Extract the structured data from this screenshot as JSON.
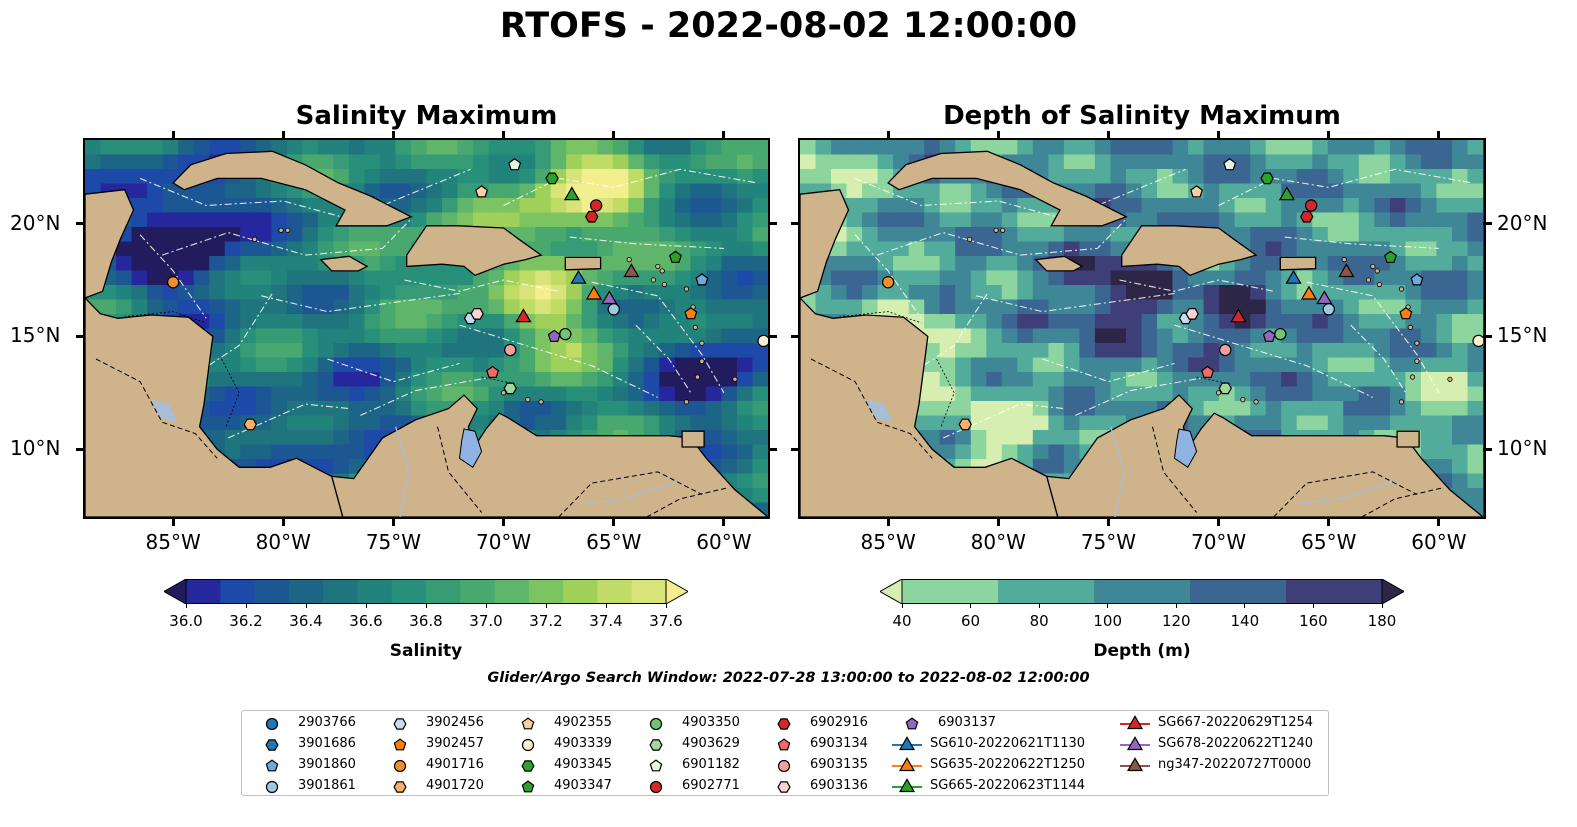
{
  "title": "RTOFS - 2022-08-02 12:00:00",
  "maps": [
    {
      "title": "Salinity Maximum"
    },
    {
      "title": "Depth of Salinity Maximum"
    }
  ],
  "lon_ticks": [
    "85°W",
    "80°W",
    "75°W",
    "70°W",
    "65°W",
    "60°W"
  ],
  "lat_ticks": [
    "20°N",
    "15°N",
    "10°N"
  ],
  "colorbars": [
    {
      "label": "Salinity",
      "ticks": [
        "36.0",
        "36.2",
        "36.4",
        "36.6",
        "36.8",
        "37.0",
        "37.2",
        "37.4",
        "37.6"
      ],
      "colors": [
        "#221c5e",
        "#26279c",
        "#1d49a8",
        "#1c5793",
        "#1d6586",
        "#1f747d",
        "#21837b",
        "#288f7a",
        "#379c75",
        "#48a86e",
        "#5fb66a",
        "#7cc361",
        "#9fd15a",
        "#c0dc66",
        "#d8e47a",
        "#f3ef8f"
      ]
    },
    {
      "label": "Depth (m)",
      "ticks": [
        "40",
        "60",
        "80",
        "100",
        "120",
        "140",
        "160",
        "180"
      ],
      "colors": [
        "#d6eeb0",
        "#8cd59f",
        "#53ab9b",
        "#3f8796",
        "#3a6691",
        "#3e3e79",
        "#2d2646"
      ]
    }
  ],
  "search_window": "Glider/Argo Search Window: 2022-07-28 13:00:00 to 2022-08-02 12:00:00",
  "map_data": {
    "lon_range": [
      -89,
      -58
    ],
    "lat_range": [
      7,
      23.7
    ],
    "land_color": "#cfb38b",
    "platforms": [
      {
        "id": "2903766",
        "marker": "circle",
        "color": "#1f77b4",
        "lon": null,
        "lat": null
      },
      {
        "id": "3901686",
        "marker": "hexagon",
        "color": "#1f77b4",
        "lon": null,
        "lat": null
      },
      {
        "id": "3901860",
        "marker": "pentagon",
        "color": "#6fa8dc",
        "lon": -61.0,
        "lat": 17.5
      },
      {
        "id": "3901861",
        "marker": "circle",
        "color": "#9ecae1",
        "lon": -65.0,
        "lat": 16.2
      },
      {
        "id": "3902456",
        "marker": "hexagon",
        "color": "#c6dbef",
        "lon": -71.5,
        "lat": 15.8
      },
      {
        "id": "3902457",
        "marker": "pentagon",
        "color": "#ff7f0e",
        "lon": -61.5,
        "lat": 16.0
      },
      {
        "id": "4901716",
        "marker": "circle",
        "color": "#f28e2b",
        "lon": -85.0,
        "lat": 17.4
      },
      {
        "id": "4901720",
        "marker": "hexagon",
        "color": "#fdae6b",
        "lon": -81.5,
        "lat": 11.1
      },
      {
        "id": "4902355",
        "marker": "pentagon",
        "color": "#fdd0a2",
        "lon": -71.0,
        "lat": 21.4
      },
      {
        "id": "4903339",
        "marker": "circle",
        "color": "#fff0d0",
        "lon": -58.2,
        "lat": 14.8
      },
      {
        "id": "4903345",
        "marker": "hexagon",
        "color": "#2ca02c",
        "lon": -67.8,
        "lat": 22.0
      },
      {
        "id": "4903347",
        "marker": "pentagon",
        "color": "#2ca02c",
        "lon": -62.2,
        "lat": 18.5
      },
      {
        "id": "4903350",
        "marker": "circle",
        "color": "#74c476",
        "lon": -67.2,
        "lat": 15.1
      },
      {
        "id": "4903629",
        "marker": "hexagon",
        "color": "#a1d99b",
        "lon": -69.7,
        "lat": 12.7
      },
      {
        "id": "6901182",
        "marker": "pentagon",
        "color": "#e5f5e0",
        "lon": -69.5,
        "lat": 22.6
      },
      {
        "id": "6902771",
        "marker": "circle",
        "color": "#d62728",
        "lon": -65.8,
        "lat": 20.8
      },
      {
        "id": "6902916",
        "marker": "hexagon",
        "color": "#d62728",
        "lon": -66.0,
        "lat": 20.3
      },
      {
        "id": "6903134",
        "marker": "pentagon",
        "color": "#f16a6a",
        "lon": -70.5,
        "lat": 13.4
      },
      {
        "id": "6903135",
        "marker": "circle",
        "color": "#f4a0a0",
        "lon": -69.7,
        "lat": 14.4
      },
      {
        "id": "6903136",
        "marker": "hexagon",
        "color": "#fcd3d3",
        "lon": -71.2,
        "lat": 16.0
      },
      {
        "id": "6903137",
        "marker": "pentagon",
        "color": "#9467bd",
        "lon": -67.7,
        "lat": 15.0
      },
      {
        "id": "SG610-20220621T1130",
        "marker": "triangle",
        "color": "#1f77b4",
        "lon": -66.6,
        "lat": 17.6
      },
      {
        "id": "SG635-20220622T1250",
        "marker": "triangle",
        "color": "#ff7f0e",
        "lon": -65.9,
        "lat": 16.9
      },
      {
        "id": "SG665-20220623T1144",
        "marker": "triangle",
        "color": "#2ca02c",
        "lon": -66.9,
        "lat": 21.3
      },
      {
        "id": "SG667-20220629T1254",
        "marker": "triangle",
        "color": "#d62728",
        "lon": -69.1,
        "lat": 15.9
      },
      {
        "id": "SG678-20220622T1240",
        "marker": "triangle",
        "color": "#9467bd",
        "lon": -65.2,
        "lat": 16.7
      },
      {
        "id": "ng347-20220727T0000",
        "marker": "triangle",
        "color": "#8c564b",
        "lon": -64.2,
        "lat": 17.9
      }
    ]
  }
}
